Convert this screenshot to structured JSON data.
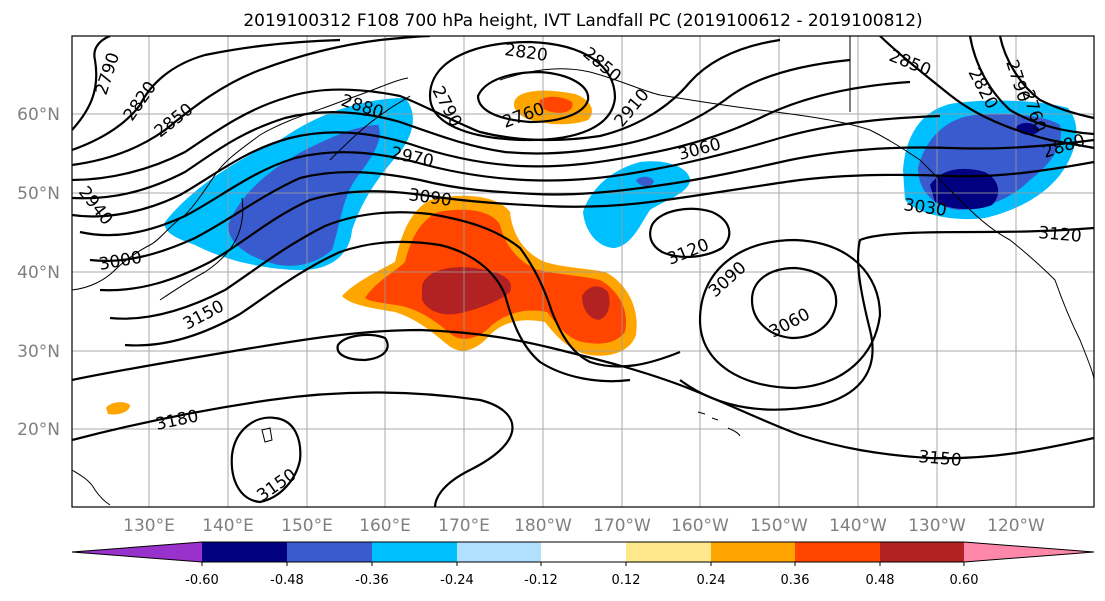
{
  "title": "2019100312 F108 700 hPa height, IVT Landfall PC (2019100612 - 2019100812)",
  "lat_labels": [
    "60°N",
    "50°N",
    "40°N",
    "30°N",
    "20°N"
  ],
  "lon_labels": [
    "130°E",
    "140°E",
    "150°E",
    "160°E",
    "170°E",
    "180°W",
    "170°W",
    "160°W",
    "150°W",
    "140°W",
    "130°W",
    "120°W"
  ],
  "contour_labels": [
    "2790",
    "2820",
    "2850",
    "2880",
    "2790",
    "2760",
    "2820",
    "2850",
    "2910",
    "3060",
    "2970",
    "3090",
    "2940",
    "3000",
    "3150",
    "3120",
    "3090",
    "3060",
    "3180",
    "3150",
    "2850",
    "2820",
    "2790",
    "2760",
    "2880",
    "3030",
    "3120",
    "3150"
  ],
  "colorbar": {
    "colors": [
      "#9932cc",
      "#000080",
      "#3a5bcd",
      "#00bfff",
      "#b0e0fe",
      "#ffffff",
      "#fee88b",
      "#ffa500",
      "#ff4500",
      "#b22222",
      "#ff88aa"
    ],
    "tick_labels": [
      "-0.60",
      "-0.48",
      "-0.36",
      "-0.24",
      "-0.12",
      "0.12",
      "0.24",
      "0.36",
      "0.48",
      "0.60"
    ]
  }
}
